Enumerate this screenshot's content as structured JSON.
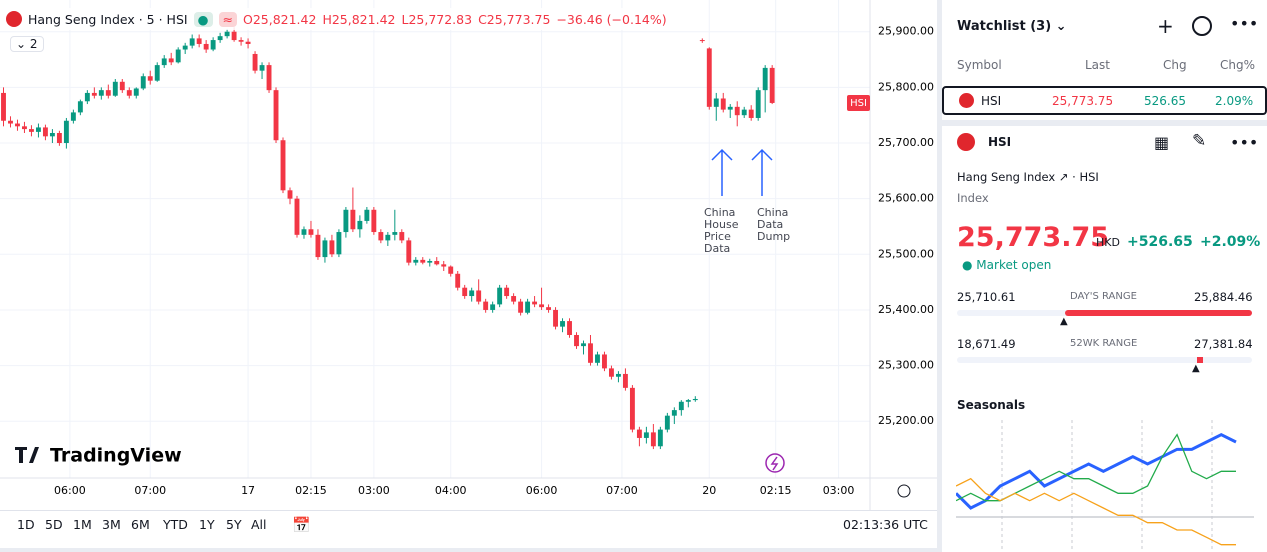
{
  "header": {
    "title": "Hang Seng Index · 5 · HSI",
    "ohlc": [
      "O25,821.42",
      "H25,821.42",
      "L25,772.83",
      "C25,773.75"
    ],
    "change": "−36.46 (−0.14%)",
    "indicators": "2"
  },
  "chart_data": {
    "type": "candlestick",
    "logo": "TradingView",
    "price_tag": "HSI",
    "candles": [
      [
        25790,
        25800,
        25730,
        25740
      ],
      [
        25740,
        25748,
        25728,
        25735
      ],
      [
        25735,
        25742,
        25722,
        25730
      ],
      [
        25730,
        25738,
        25718,
        25725
      ],
      [
        25725,
        25732,
        25712,
        25720
      ],
      [
        25720,
        25735,
        25710,
        25728
      ],
      [
        25728,
        25733,
        25705,
        25712
      ],
      [
        25712,
        25725,
        25700,
        25718
      ],
      [
        25718,
        25722,
        25695,
        25700
      ],
      [
        25700,
        25745,
        25690,
        25740
      ],
      [
        25740,
        25760,
        25735,
        25755
      ],
      [
        25755,
        25778,
        25750,
        25775
      ],
      [
        25775,
        25795,
        25770,
        25790
      ],
      [
        25790,
        25800,
        25780,
        25785
      ],
      [
        25785,
        25800,
        25778,
        25795
      ],
      [
        25795,
        25805,
        25780,
        25785
      ],
      [
        25785,
        25815,
        25783,
        25810
      ],
      [
        25810,
        25815,
        25790,
        25795
      ],
      [
        25795,
        25800,
        25780,
        25785
      ],
      [
        25785,
        25800,
        25780,
        25798
      ],
      [
        25798,
        25825,
        25795,
        25820
      ],
      [
        25820,
        25830,
        25805,
        25812
      ],
      [
        25812,
        25845,
        25810,
        25840
      ],
      [
        25840,
        25858,
        25835,
        25852
      ],
      [
        25852,
        25862,
        25840,
        25845
      ],
      [
        25845,
        25872,
        25843,
        25868
      ],
      [
        25868,
        25880,
        25860,
        25875
      ],
      [
        25875,
        25895,
        25870,
        25888
      ],
      [
        25888,
        25895,
        25872,
        25878
      ],
      [
        25878,
        25885,
        25862,
        25868
      ],
      [
        25868,
        25890,
        25865,
        25885
      ],
      [
        25885,
        25898,
        25880,
        25892
      ],
      [
        25892,
        25905,
        25888,
        25900
      ],
      [
        25900,
        25908,
        25882,
        25885
      ],
      [
        25885,
        25890,
        25875,
        25882
      ],
      [
        25882,
        25888,
        25870,
        25878
      ],
      [
        25860,
        25865,
        25825,
        25830
      ],
      [
        25830,
        25845,
        25815,
        25840
      ],
      [
        25840,
        25845,
        25790,
        25795
      ],
      [
        25795,
        25800,
        25700,
        25705
      ],
      [
        25705,
        25710,
        25610,
        25615
      ],
      [
        25615,
        25620,
        25590,
        25600
      ],
      [
        25600,
        25605,
        25530,
        25535
      ],
      [
        25535,
        25550,
        25528,
        25545
      ],
      [
        25545,
        25560,
        25530,
        25535
      ],
      [
        25535,
        25545,
        25490,
        25495
      ],
      [
        25495,
        25530,
        25485,
        25525
      ],
      [
        25525,
        25535,
        25495,
        25500
      ],
      [
        25500,
        25545,
        25495,
        25540
      ],
      [
        25540,
        25585,
        25530,
        25580
      ],
      [
        25580,
        25620,
        25540,
        25545
      ],
      [
        25545,
        25570,
        25530,
        25560
      ],
      [
        25560,
        25585,
        25555,
        25580
      ],
      [
        25580,
        25585,
        25535,
        25540
      ],
      [
        25540,
        25545,
        25520,
        25525
      ],
      [
        25525,
        25540,
        25515,
        25535
      ],
      [
        25535,
        25580,
        25525,
        25540
      ],
      [
        25540,
        25545,
        25520,
        25525
      ],
      [
        25525,
        25530,
        25480,
        25485
      ],
      [
        25485,
        25495,
        25480,
        25490
      ],
      [
        25490,
        25495,
        25482,
        25485
      ],
      [
        25485,
        25492,
        25478,
        25488
      ],
      [
        25488,
        25495,
        25480,
        25482
      ],
      [
        25482,
        25488,
        25470,
        25478
      ],
      [
        25478,
        25480,
        25460,
        25465
      ],
      [
        25465,
        25470,
        25435,
        25440
      ],
      [
        25440,
        25445,
        25420,
        25425
      ],
      [
        25425,
        25440,
        25415,
        25435
      ],
      [
        25435,
        25455,
        25410,
        25415
      ],
      [
        25415,
        25420,
        25395,
        25400
      ],
      [
        25400,
        25415,
        25395,
        25410
      ],
      [
        25410,
        25445,
        25405,
        25440
      ],
      [
        25440,
        25445,
        25420,
        25425
      ],
      [
        25425,
        25430,
        25410,
        25415
      ],
      [
        25415,
        25420,
        25390,
        25395
      ],
      [
        25395,
        25420,
        25392,
        25415
      ],
      [
        25415,
        25425,
        25405,
        25410
      ],
      [
        25410,
        25440,
        25400,
        25405
      ],
      [
        25405,
        25410,
        25395,
        25400
      ],
      [
        25400,
        25405,
        25365,
        25370
      ],
      [
        25370,
        25385,
        25360,
        25380
      ],
      [
        25380,
        25385,
        25350,
        25355
      ],
      [
        25355,
        25360,
        25330,
        25335
      ],
      [
        25335,
        25345,
        25320,
        25340
      ],
      [
        25340,
        25355,
        25300,
        25305
      ],
      [
        25305,
        25325,
        25300,
        25320
      ],
      [
        25320,
        25325,
        25290,
        25295
      ],
      [
        25295,
        25300,
        25275,
        25280
      ],
      [
        25280,
        25290,
        25270,
        25285
      ],
      [
        25285,
        25295,
        25255,
        25260
      ],
      [
        25260,
        25265,
        25180,
        25185
      ],
      [
        25185,
        25190,
        25155,
        25170
      ],
      [
        25170,
        25190,
        25160,
        25180
      ],
      [
        25180,
        25195,
        25150,
        25155
      ],
      [
        25155,
        25190,
        25150,
        25185
      ],
      [
        25185,
        25215,
        25180,
        25210
      ],
      [
        25210,
        25225,
        25195,
        25220
      ],
      [
        25220,
        25238,
        25210,
        25235
      ],
      [
        25235,
        25240,
        25225,
        25238
      ],
      [
        25238,
        25245,
        25235,
        25240
      ],
      [
        25885,
        25888,
        25880,
        25884
      ],
      [
        25870,
        25872,
        25760,
        25765
      ],
      [
        25765,
        25790,
        25740,
        25780
      ],
      [
        25780,
        25790,
        25755,
        25760
      ],
      [
        25760,
        25770,
        25745,
        25765
      ],
      [
        25765,
        25775,
        25730,
        25750
      ],
      [
        25750,
        25765,
        25745,
        25760
      ],
      [
        25760,
        25768,
        25740,
        25745
      ],
      [
        25745,
        25800,
        25740,
        25795
      ],
      [
        25795,
        25840,
        25755,
        25835
      ],
      [
        25835,
        25840,
        25770,
        25772
      ]
    ],
    "up_color": "#089981",
    "down_color": "#f23645",
    "xlim": [
      -0.5,
      124
    ],
    "xticks": [
      {
        "value": 9.5,
        "label": "06:00"
      },
      {
        "value": 21,
        "label": "07:00"
      },
      {
        "value": 35,
        "label": "17"
      },
      {
        "value": 44,
        "label": "02:15"
      },
      {
        "value": 53,
        "label": "03:00"
      },
      {
        "value": 64,
        "label": "04:00"
      },
      {
        "value": 77,
        "label": "06:00"
      },
      {
        "value": 88.5,
        "label": "07:00"
      },
      {
        "value": 101,
        "label": "20"
      },
      {
        "value": 110.5,
        "label": "02:15"
      },
      {
        "value": 119.5,
        "label": "03:00"
      }
    ],
    "ylim": [
      25098,
      25957
    ],
    "yticks": [
      {
        "value": 25200,
        "label": "25,200.00"
      },
      {
        "value": 25300,
        "label": "25,300.00"
      },
      {
        "value": 25400,
        "label": "25,400.00"
      },
      {
        "value": 25500,
        "label": "25,500.00"
      },
      {
        "value": 25600,
        "label": "25,600.00"
      },
      {
        "value": 25700,
        "label": "25,700.00"
      },
      {
        "value": 25800,
        "label": "25,800.00"
      },
      {
        "value": 25900,
        "label": "25,900.00"
      }
    ],
    "grid": true,
    "annotations": [
      [
        "China",
        "House",
        "Price",
        "Data"
      ],
      [
        "China",
        "Data",
        "Dump"
      ]
    ]
  },
  "toolbar": {
    "ranges": [
      "1D",
      "5D",
      "1M",
      "3M",
      "6M",
      "YTD",
      "1Y",
      "5Y",
      "All"
    ],
    "clock": "02:13:36 UTC"
  },
  "watchlist": {
    "title": "Watchlist (3)",
    "columns": [
      "Symbol",
      "Last",
      "Chg",
      "Chg%"
    ],
    "row": [
      "HSI",
      "25,773.75",
      "526.65",
      "2.09%"
    ]
  },
  "details": {
    "symbol": "HSI",
    "name": "Hang Seng Index",
    "ticker": "HSI",
    "kind": "Index",
    "price": "25,773.75",
    "currency": "HKD",
    "change": "+526.65",
    "change_pct": "+2.09%",
    "status": "Market open",
    "day_range": [
      "25,710.61",
      "DAY'S RANGE",
      "25,884.46"
    ],
    "wk52_range": [
      "18,671.49",
      "52WK RANGE",
      "27,381.84"
    ],
    "seasonals_title": "Seasonals"
  },
  "seasonals": {
    "type": "line",
    "ylim": [
      -10,
      8
    ],
    "series": [
      {
        "color": "#2962ff",
        "values": [
          -2,
          -4,
          -3,
          -1,
          0,
          1,
          -1,
          0,
          1,
          2,
          1,
          2,
          3,
          2,
          3,
          4,
          4,
          5,
          6,
          5
        ]
      },
      {
        "color": "#22ab4b",
        "values": [
          -3,
          -2,
          -3,
          -3,
          -2,
          -1,
          0,
          1,
          0,
          0,
          -1,
          -2,
          -2,
          -1,
          3,
          6,
          1,
          0,
          1,
          1
        ]
      },
      {
        "color": "#f7a21b",
        "values": [
          -1,
          0,
          -2,
          -3,
          -2,
          -3,
          -2,
          -3,
          -2,
          -3,
          -4,
          -5,
          -5,
          -6,
          -6,
          -7,
          -7,
          -8,
          -9,
          -9
        ]
      }
    ]
  }
}
